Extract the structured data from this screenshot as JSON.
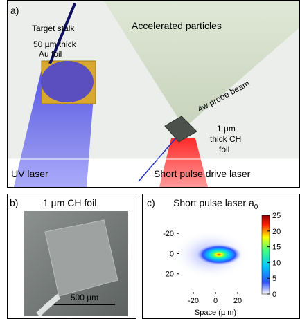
{
  "panels": {
    "a": {
      "label": "a)",
      "target_stalk": "Target stalk",
      "au_foil": [
        "50 µm thick",
        "Au foil"
      ],
      "accelerated": "Accelerated particles",
      "probe": "4w probe beam",
      "ch_foil": [
        "1 µm",
        "thick CH",
        "foil"
      ],
      "uv_laser": "UV laser",
      "drive_laser": "Short pulse drive laser"
    },
    "b": {
      "label": "b)",
      "title": "1 µm CH foil",
      "scale_bar": "500 µm"
    },
    "c": {
      "label": "c)",
      "title": "Short pulse laser a",
      "title_subscript": "0",
      "x_label": "Space (µ m)",
      "xlim": [
        -35,
        35
      ],
      "ylim": [
        -42,
        40
      ],
      "xticks": [
        -20,
        0,
        20
      ],
      "yticks": [
        -20,
        0,
        20
      ],
      "colorbar": {
        "lim": [
          0,
          25
        ],
        "ticks": [
          0,
          5,
          10,
          15,
          20,
          25
        ]
      }
    }
  }
}
